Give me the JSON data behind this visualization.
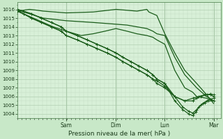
{
  "xlabel": "Pression niveau de la mer( hPa )",
  "background_color": "#c8e8c8",
  "plot_bg_color": "#d8f0d8",
  "grid_major_color": "#a8c8a8",
  "grid_minor_color": "#c0dcc0",
  "ylim": [
    1003.5,
    1016.8
  ],
  "yticks": [
    1004,
    1005,
    1006,
    1007,
    1008,
    1009,
    1010,
    1011,
    1012,
    1013,
    1014,
    1015,
    1016
  ],
  "day_labels": [
    "Sam",
    "Dim",
    "Lun",
    "Mar"
  ],
  "day_positions": [
    0.245,
    0.495,
    0.74,
    0.985
  ],
  "line_color": "#1a5c1a",
  "xlim": [
    0.0,
    1.02
  ],
  "lines": [
    {
      "x": [
        0.0,
        0.03,
        0.06,
        0.1,
        0.13,
        0.245,
        0.38,
        0.495,
        0.55,
        0.6,
        0.65,
        0.66,
        0.68,
        0.7,
        0.74,
        0.79,
        0.84,
        0.9,
        0.95,
        0.985
      ],
      "y": [
        1015.8,
        1015.9,
        1016.0,
        1015.9,
        1015.8,
        1015.6,
        1015.7,
        1016.0,
        1015.9,
        1015.8,
        1016.0,
        1015.7,
        1015.5,
        1015.3,
        1013.2,
        1011.0,
        1009.0,
        1007.5,
        1006.2,
        1005.2
      ],
      "marker": false
    },
    {
      "x": [
        0.0,
        0.03,
        0.06,
        0.1,
        0.13,
        0.245,
        0.38,
        0.495,
        0.55,
        0.6,
        0.65,
        0.68,
        0.7,
        0.74,
        0.79,
        0.84,
        0.9,
        0.95,
        0.985
      ],
      "y": [
        1015.8,
        1015.7,
        1015.5,
        1015.2,
        1015.0,
        1014.7,
        1014.5,
        1014.3,
        1014.2,
        1014.0,
        1013.8,
        1013.5,
        1013.2,
        1013.0,
        1010.5,
        1008.5,
        1007.0,
        1006.0,
        1005.5
      ],
      "marker": false
    },
    {
      "x": [
        0.0,
        0.03,
        0.06,
        0.1,
        0.13,
        0.18,
        0.245,
        0.32,
        0.38,
        0.44,
        0.495,
        0.55,
        0.6,
        0.65,
        0.68,
        0.7,
        0.74,
        0.79,
        0.84,
        0.88,
        0.9,
        0.95,
        0.985
      ],
      "y": [
        1015.8,
        1015.5,
        1015.2,
        1014.8,
        1014.5,
        1014.0,
        1013.5,
        1013.0,
        1013.2,
        1013.5,
        1013.8,
        1013.5,
        1013.2,
        1013.0,
        1012.8,
        1012.5,
        1012.0,
        1009.0,
        1007.0,
        1006.5,
        1006.0,
        1005.8,
        1005.5
      ],
      "marker": false
    },
    {
      "x": [
        0.0,
        0.03,
        0.07,
        0.12,
        0.17,
        0.22,
        0.245,
        0.3,
        0.35,
        0.4,
        0.45,
        0.495,
        0.53,
        0.57,
        0.61,
        0.65,
        0.68,
        0.7,
        0.74,
        0.79,
        0.83,
        0.86,
        0.88,
        0.9,
        0.92,
        0.94,
        0.96,
        0.985
      ],
      "y": [
        1016.0,
        1015.8,
        1015.5,
        1015.0,
        1014.5,
        1014.0,
        1013.5,
        1013.0,
        1012.5,
        1012.0,
        1011.5,
        1011.0,
        1010.5,
        1010.0,
        1009.5,
        1009.0,
        1008.5,
        1008.0,
        1007.5,
        1006.0,
        1004.8,
        1004.3,
        1004.1,
        1004.5,
        1005.0,
        1005.3,
        1005.5,
        1005.5
      ],
      "marker": true
    },
    {
      "x": [
        0.0,
        0.03,
        0.07,
        0.12,
        0.17,
        0.22,
        0.245,
        0.3,
        0.35,
        0.4,
        0.45,
        0.495,
        0.53,
        0.57,
        0.61,
        0.65,
        0.68,
        0.7,
        0.74,
        0.79,
        0.83,
        0.86,
        0.88,
        0.895,
        0.91,
        0.93,
        0.95,
        0.97,
        0.985
      ],
      "y": [
        1016.0,
        1015.8,
        1015.5,
        1015.0,
        1014.5,
        1014.0,
        1013.5,
        1013.0,
        1012.5,
        1012.0,
        1011.5,
        1011.0,
        1010.5,
        1010.0,
        1009.5,
        1009.0,
        1008.5,
        1008.0,
        1007.5,
        1005.5,
        1004.5,
        1004.0,
        1003.8,
        1004.2,
        1004.8,
        1005.2,
        1005.5,
        1005.7,
        1005.8
      ],
      "marker": true
    },
    {
      "x": [
        0.0,
        0.03,
        0.07,
        0.12,
        0.17,
        0.22,
        0.245,
        0.3,
        0.35,
        0.4,
        0.45,
        0.495,
        0.53,
        0.57,
        0.61,
        0.65,
        0.68,
        0.7,
        0.74,
        0.79,
        0.84,
        0.88,
        0.9,
        0.92,
        0.95,
        0.97,
        0.985
      ],
      "y": [
        1015.8,
        1015.5,
        1015.0,
        1014.5,
        1014.0,
        1013.5,
        1013.0,
        1012.5,
        1012.0,
        1011.5,
        1011.0,
        1010.5,
        1010.0,
        1009.5,
        1009.0,
        1008.5,
        1008.0,
        1007.8,
        1007.2,
        1006.0,
        1005.5,
        1005.5,
        1005.8,
        1006.0,
        1006.2,
        1006.3,
        1006.2
      ],
      "marker": true
    },
    {
      "x": [
        0.0,
        0.03,
        0.07,
        0.12,
        0.17,
        0.22,
        0.245,
        0.3,
        0.35,
        0.4,
        0.45,
        0.495,
        0.53,
        0.57,
        0.61,
        0.65,
        0.68,
        0.7,
        0.74,
        0.79,
        0.84,
        0.88,
        0.91,
        0.94,
        0.97,
        0.985
      ],
      "y": [
        1015.8,
        1015.5,
        1015.0,
        1014.5,
        1014.0,
        1013.5,
        1013.0,
        1012.5,
        1012.0,
        1011.5,
        1011.0,
        1010.5,
        1010.0,
        1009.5,
        1009.0,
        1008.5,
        1008.0,
        1007.5,
        1007.0,
        1006.0,
        1005.5,
        1005.8,
        1006.0,
        1006.2,
        1006.2,
        1006.0
      ],
      "marker": true
    }
  ],
  "marker_size": 3.0,
  "linewidth_marker": 0.9,
  "linewidth_plain": 0.9
}
